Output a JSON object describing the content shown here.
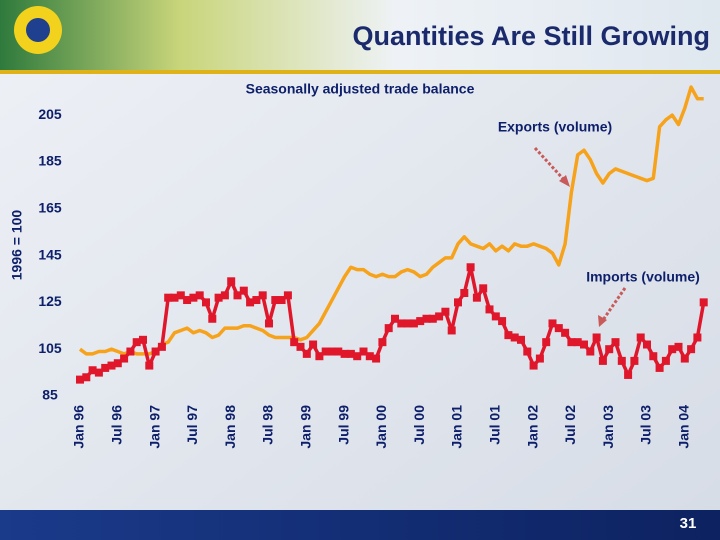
{
  "slide": {
    "title": "Quantities Are Still Growing",
    "page_number": "31"
  },
  "chart_data": {
    "type": "line",
    "subtitle": "Seasonally  adjusted trade balance",
    "ylabel": "1996 = 100",
    "annotations": [
      "Exports (volume)",
      "Imports (volume)"
    ],
    "categories": [
      "Jan 96",
      null,
      null,
      null,
      null,
      null,
      "Jul 96",
      null,
      null,
      null,
      null,
      null,
      "Jan 97",
      null,
      null,
      null,
      null,
      null,
      "Jul 97",
      null,
      null,
      null,
      null,
      null,
      "Jan 98",
      null,
      null,
      null,
      null,
      null,
      "Jul 98",
      null,
      null,
      null,
      null,
      null,
      "Jan 99",
      null,
      null,
      null,
      null,
      null,
      "Jul 99",
      null,
      null,
      null,
      null,
      null,
      "Jan 00",
      null,
      null,
      null,
      null,
      null,
      "Jul 00",
      null,
      null,
      null,
      null,
      null,
      "Jan 01",
      null,
      null,
      null,
      null,
      null,
      "Jul 01",
      null,
      null,
      null,
      null,
      null,
      "Jan 02",
      null,
      null,
      null,
      null,
      null,
      "Jul 02",
      null,
      null,
      null,
      null,
      null,
      "Jan 03",
      null,
      null,
      null,
      null,
      null,
      "Jul 03",
      null,
      null,
      null,
      null,
      null,
      "Jan 04",
      null,
      null,
      null
    ],
    "series": [
      {
        "name": "Exports (volume)",
        "color": "#f7a21b",
        "markers": false,
        "values": [
          105,
          103,
          103,
          104,
          104,
          105,
          104,
          103,
          104,
          103,
          103,
          103,
          104,
          107,
          108,
          112,
          113,
          114,
          112,
          113,
          112,
          110,
          111,
          114,
          114,
          114,
          115,
          115,
          114,
          113,
          111,
          110,
          110,
          110,
          110,
          109,
          110,
          113,
          116,
          121,
          126,
          131,
          136,
          140,
          139,
          139,
          137,
          136,
          137,
          136,
          136,
          138,
          139,
          138,
          136,
          137,
          140,
          142,
          144,
          144,
          150,
          153,
          150,
          149,
          148,
          150,
          147,
          149,
          147,
          150,
          149,
          149,
          150,
          149,
          148,
          146,
          141,
          150,
          172,
          188,
          190,
          186,
          180,
          176,
          180,
          182,
          181,
          180,
          179,
          178,
          177,
          178,
          200,
          203,
          205,
          201,
          208,
          217,
          212,
          212
        ]
      },
      {
        "name": "Imports (volume)",
        "color": "#e0162b",
        "markers": true,
        "values": [
          92,
          93,
          96,
          95,
          97,
          98,
          99,
          101,
          104,
          108,
          109,
          98,
          104,
          106,
          127,
          127,
          128,
          126,
          127,
          128,
          125,
          118,
          127,
          128,
          134,
          128,
          130,
          125,
          126,
          128,
          116,
          126,
          126,
          128,
          108,
          106,
          103,
          107,
          102,
          104,
          104,
          104,
          103,
          103,
          102,
          104,
          102,
          101,
          108,
          114,
          118,
          116,
          116,
          116,
          117,
          118,
          118,
          119,
          121,
          113,
          125,
          129,
          140,
          127,
          131,
          122,
          119,
          117,
          111,
          110,
          109,
          104,
          98,
          101,
          108,
          116,
          114,
          112,
          108,
          108,
          107,
          104,
          110,
          100,
          105,
          108,
          100,
          94,
          100,
          110,
          107,
          102,
          97,
          100,
          105,
          106,
          101,
          105,
          110,
          125
        ]
      }
    ],
    "ylim": [
      85,
      220
    ],
    "yticks": [
      85,
      105,
      125,
      145,
      165,
      185,
      205
    ],
    "grid": false
  }
}
